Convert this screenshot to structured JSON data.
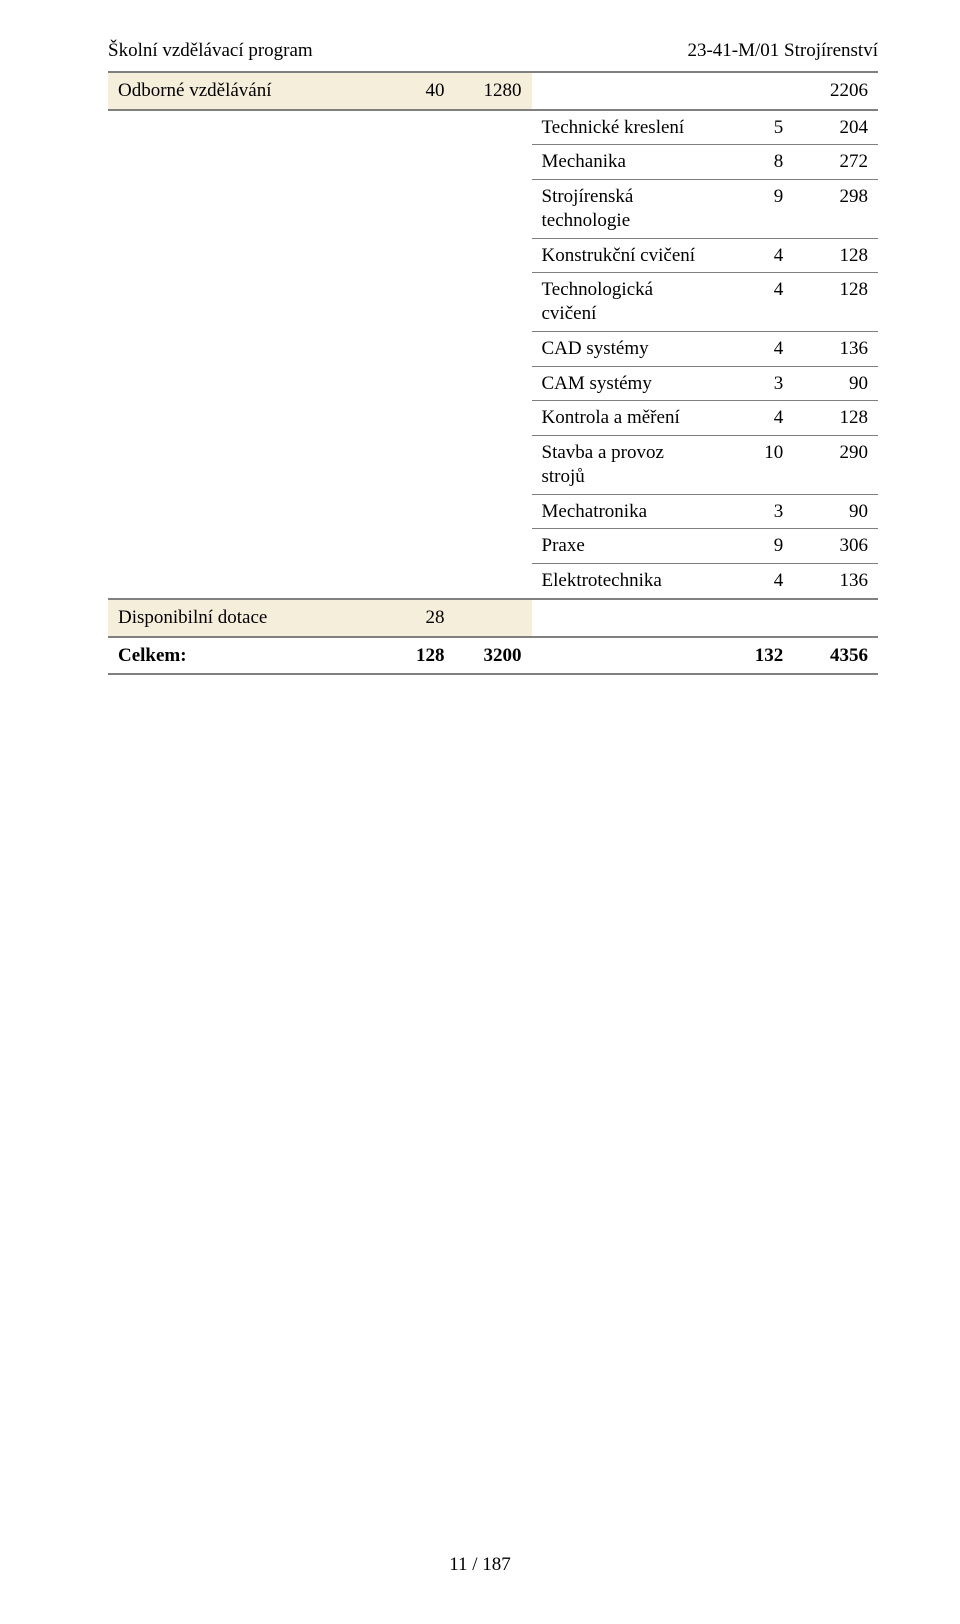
{
  "header": {
    "left": "Školní vzdělávací program",
    "right": "23-41-M/01 Strojírenství"
  },
  "columns": {
    "blank": "",
    "col2": "",
    "col3": "",
    "col4": "",
    "col5": "",
    "col6": ""
  },
  "section": {
    "title": "Odborné vzdělávání",
    "c2": "40",
    "c3": "1280",
    "c4": "",
    "c5": "",
    "c6": "2206"
  },
  "rows": [
    {
      "label": "Technické kreslení",
      "v1": "5",
      "v2": "204"
    },
    {
      "label": "Mechanika",
      "v1": "8",
      "v2": "272"
    },
    {
      "label": "Strojírenská technologie",
      "v1": "9",
      "v2": "298"
    },
    {
      "label": "Konstrukční cvičení",
      "v1": "4",
      "v2": "128"
    },
    {
      "label": "Technologická cvičení",
      "v1": "4",
      "v2": "128"
    },
    {
      "label": "CAD systémy",
      "v1": "4",
      "v2": "136"
    },
    {
      "label": "CAM systémy",
      "v1": "3",
      "v2": "90"
    },
    {
      "label": "Kontrola a měření",
      "v1": "4",
      "v2": "128"
    },
    {
      "label": "Stavba a provoz strojů",
      "v1": "10",
      "v2": "290"
    },
    {
      "label": "Mechatronika",
      "v1": "3",
      "v2": "90"
    },
    {
      "label": "Praxe",
      "v1": "9",
      "v2": "306"
    },
    {
      "label": "Elektrotechnika",
      "v1": "4",
      "v2": "136"
    }
  ],
  "disp": {
    "title": "Disponibilní dotace",
    "c2": "28",
    "c3": "",
    "c4": "",
    "c5": "",
    "c6": ""
  },
  "totals": {
    "title": "Celkem:",
    "c2": "128",
    "c3": "3200",
    "c4": "",
    "c5": "132",
    "c6": "4356"
  },
  "footer": "11 / 187"
}
